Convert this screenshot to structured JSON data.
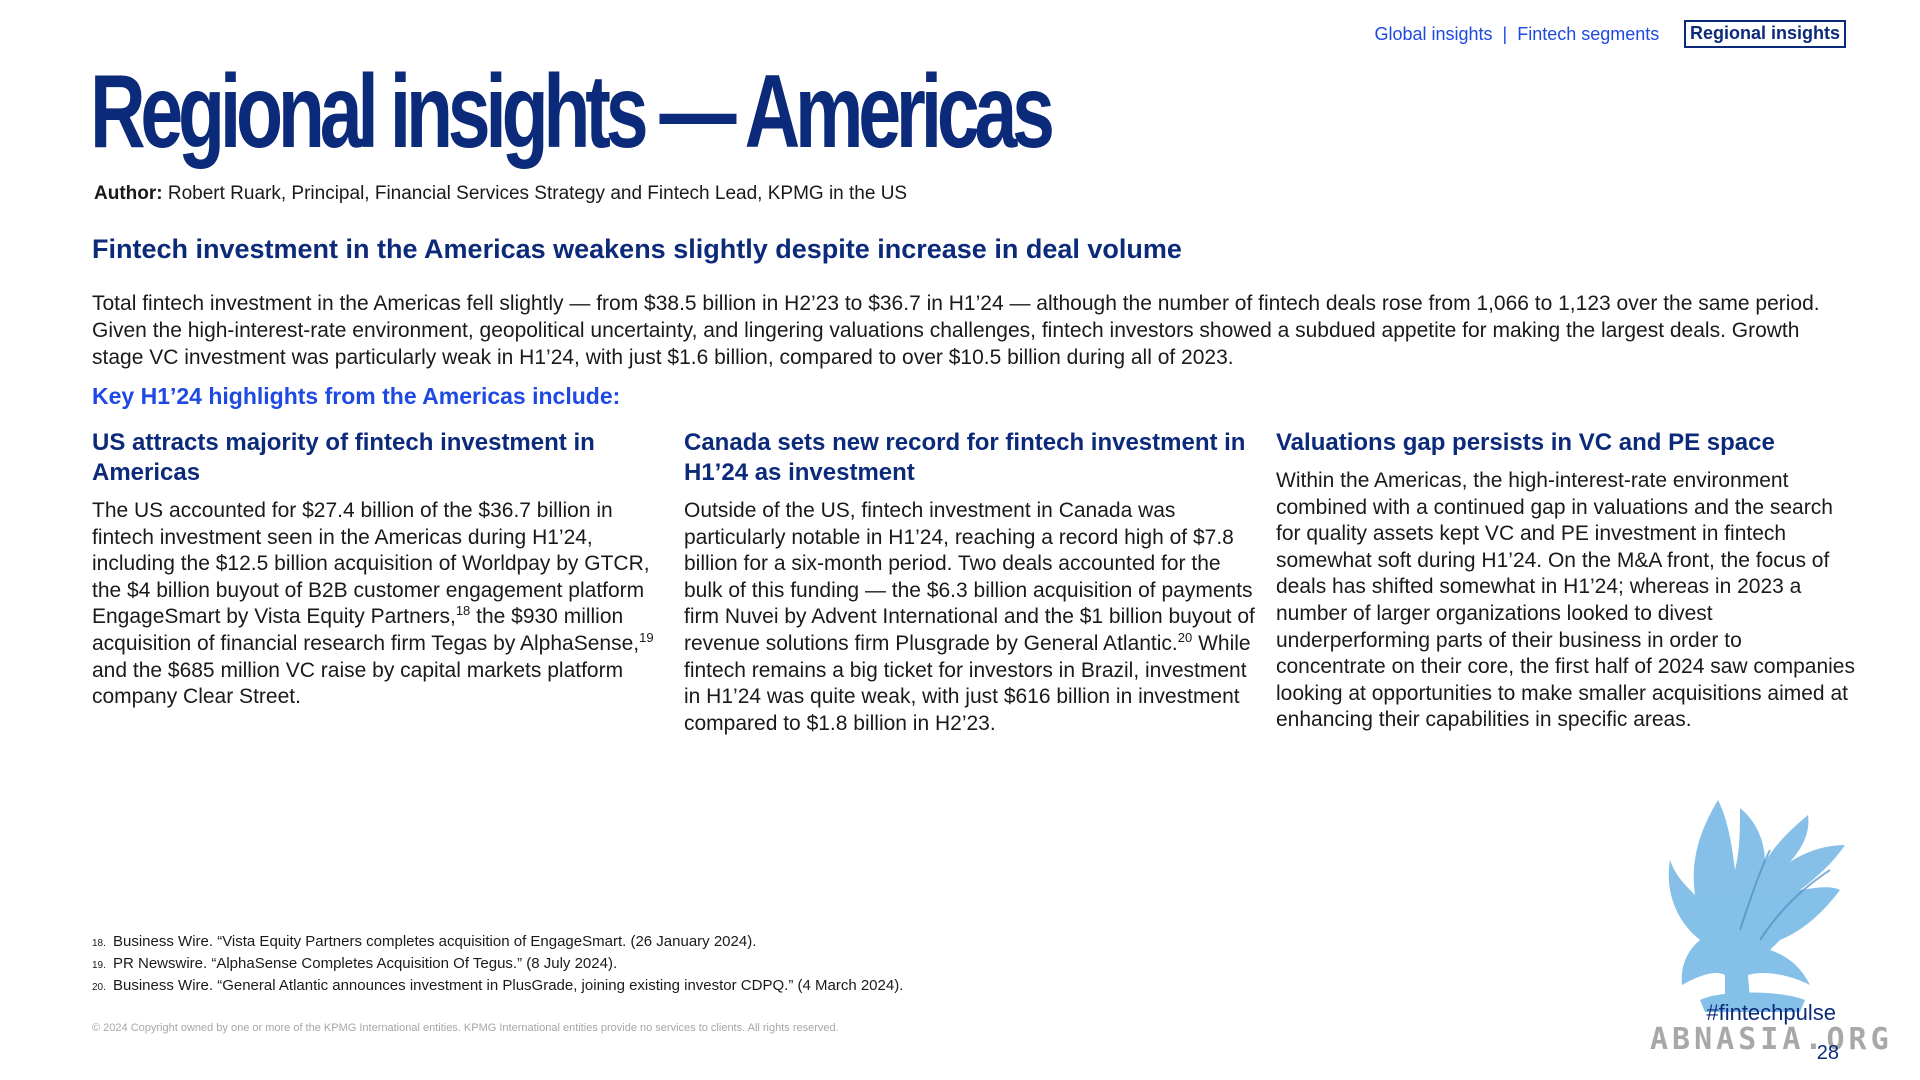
{
  "nav": {
    "items": [
      "Global insights",
      "Fintech segments",
      "Regional insights"
    ],
    "separator": "|",
    "active_index": 2
  },
  "title": "Regional insights — Americas",
  "author": {
    "label": "Author:",
    "text": "Robert Ruark, Principal, Financial Services Strategy and Fintech Lead, KPMG in the US"
  },
  "headline": "Fintech investment in the Americas weakens slightly despite increase in deal volume",
  "intro": "Total fintech investment in the Americas fell slightly — from $38.5 billion in H2’23 to $36.7 in H1’24 — although the number of fintech deals rose from 1,066 to 1,123 over the same period. Given the high-interest-rate environment, geopolitical uncertainty, and lingering valuations challenges, fintech investors showed a subdued appetite for making the largest deals. Growth stage VC investment was particularly weak in H1’24, with just $1.6 billion, compared to over $10.5 billion during all of 2023.",
  "highlights_heading": "Key H1’24 highlights from the Americas include:",
  "columns": [
    {
      "heading": "US attracts majority of fintech investment in Americas",
      "body_parts": [
        "The US accounted for $27.4 billion of the $36.7 billion in fintech investment seen in the Americas during H1’24, including the $12.5 billion acquisition of Worldpay by GTCR, the $4 billion buyout of B2B customer engagement platform EngageSmart by Vista Equity Partners,",
        "18",
        " the $930 million acquisition of financial research firm Tegas by AlphaSense,",
        "19",
        " and the $685 million VC raise by capital markets platform company Clear Street."
      ]
    },
    {
      "heading": "Canada sets new record for fintech investment in H1’24 as investment",
      "body_parts": [
        "Outside of the US, fintech investment in Canada was particularly notable in H1’24, reaching a record high of $7.8 billion for a six-month period. Two deals accounted for the bulk of this funding — the $6.3 billion acquisition of payments firm Nuvei by Advent International and the $1 billion buyout of revenue solutions firm Plusgrade by General Atlantic.",
        "20",
        " While fintech remains a big ticket for investors in Brazil, investment in H1’24 was quite weak, with just $616 billion in investment compared to $1.8 billion in H2’23."
      ]
    },
    {
      "heading": "Valuations gap persists in VC and PE space",
      "body_parts": [
        "Within the Americas, the high-interest-rate environment combined with a continued gap in valuations and the search for quality assets kept VC and PE investment in fintech somewhat soft during H1’24. On the M&A front, the focus of deals has shifted somewhat in H1’24; whereas in 2023 a number of larger organizations looked to divest underperforming parts of their business in order to concentrate on their core, the first half of 2024 saw companies looking at opportunities to make smaller acquisitions aimed at enhancing their capabilities in specific areas."
      ]
    }
  ],
  "footnotes": [
    {
      "num": "18.",
      "text": "Business Wire. “Vista Equity Partners completes acquisition of EngageSmart. (26 January 2024)."
    },
    {
      "num": "19.",
      "text": "PR Newswire. “AlphaSense Completes Acquisition Of Tegus.” (8 July 2024)."
    },
    {
      "num": "20.",
      "text": "Business Wire. “General Atlantic announces investment in PlusGrade, joining existing investor CDPQ.” (4 March 2024)."
    }
  ],
  "copyright": "© 2024 Copyright owned by one or more of the KPMG International entities. KPMG International entities provide no services to clients. All rights reserved.",
  "hashtag": "#fintechpulse",
  "watermark": "ABNASIA.ORG",
  "page_number": "28",
  "colors": {
    "brand_dark_blue": "#0c2a7a",
    "accent_blue": "#1e49e2",
    "bird_light_blue": "#7fbde8"
  }
}
